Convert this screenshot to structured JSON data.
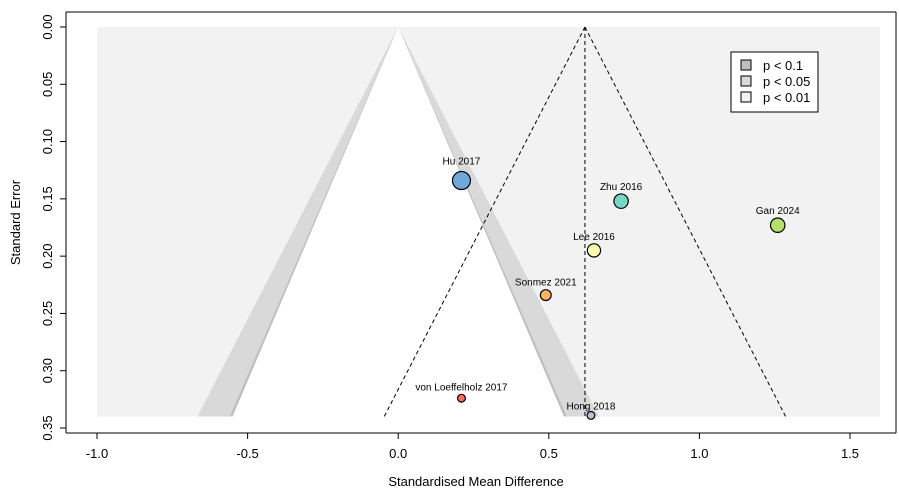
{
  "chart_data": {
    "type": "scatter",
    "subtype": "contour-enhanced funnel plot",
    "xlabel": "Standardised Mean Difference",
    "ylabel": "Standard Error",
    "xlim": [
      -1.0,
      1.6
    ],
    "ylim": [
      0.35,
      0.0
    ],
    "y_reversed": true,
    "x_ticks": [
      {
        "value": -1.0,
        "label": "-1.0"
      },
      {
        "value": -0.5,
        "label": "-0.5"
      },
      {
        "value": 0.0,
        "label": "0.0"
      },
      {
        "value": 0.5,
        "label": "0.5"
      },
      {
        "value": 1.0,
        "label": "1.0"
      },
      {
        "value": 1.5,
        "label": "1.5"
      }
    ],
    "y_ticks": [
      {
        "value": 0.0,
        "label": "0.00"
      },
      {
        "value": 0.05,
        "label": "0.05"
      },
      {
        "value": 0.1,
        "label": "0.10"
      },
      {
        "value": 0.15,
        "label": "0.15"
      },
      {
        "value": 0.2,
        "label": "0.20"
      },
      {
        "value": 0.25,
        "label": "0.25"
      },
      {
        "value": 0.3,
        "label": "0.30"
      },
      {
        "value": 0.35,
        "label": "0.35"
      }
    ],
    "max_se": 0.34,
    "summary_estimate": 0.62,
    "contours": [
      {
        "label": "p < 0.1",
        "z": 1.645,
        "color": "#bfbfbf"
      },
      {
        "label": "p < 0.05",
        "z": 1.96,
        "color": "#d9d9d9"
      },
      {
        "label": "p < 0.01",
        "z": 2.576,
        "color": "#f2f2f2"
      }
    ],
    "legend": {
      "position": "top-right"
    },
    "points": [
      {
        "study": "Hu 2017",
        "smd": 0.21,
        "se": 0.134,
        "color": "#6fa8dc",
        "size": 3.0
      },
      {
        "study": "Zhu 2016",
        "smd": 0.74,
        "se": 0.152,
        "color": "#76d7c4",
        "size": 2.4
      },
      {
        "study": "Gan 2024",
        "smd": 1.26,
        "se": 0.173,
        "color": "#b5e06a",
        "size": 2.4
      },
      {
        "study": "Lee 2016",
        "smd": 0.65,
        "se": 0.195,
        "color": "#ffffb3",
        "size": 2.2
      },
      {
        "study": "Sonmez 2021",
        "smd": 0.49,
        "se": 0.234,
        "color": "#fdb462",
        "size": 1.8
      },
      {
        "study": "von Loeffelholz 2017",
        "smd": 0.21,
        "se": 0.324,
        "color": "#fb6a5a",
        "size": 1.3
      },
      {
        "study": "Hong 2018",
        "smd": 0.64,
        "se": 0.339,
        "color": "#bebada",
        "size": 1.3
      }
    ]
  }
}
